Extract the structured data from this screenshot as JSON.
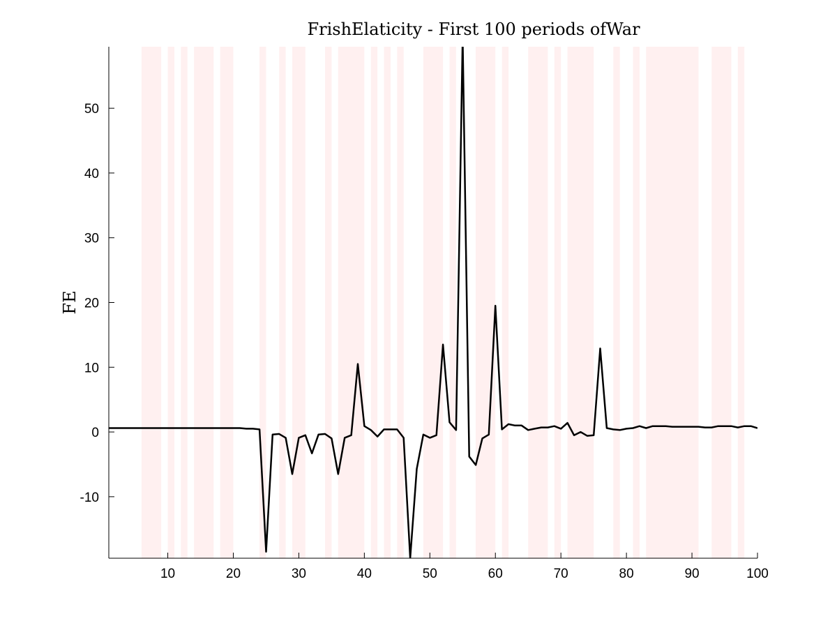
{
  "chart_data": {
    "type": "line",
    "title": "FrishElaticity - First 100 periods ofWar",
    "xlabel": "",
    "ylabel": "FE",
    "xlim": [
      1,
      100
    ],
    "ylim": [
      -19.5,
      59.5
    ],
    "xticks": [
      10,
      20,
      30,
      40,
      50,
      60,
      70,
      80,
      90,
      100
    ],
    "yticks": [
      -10,
      0,
      10,
      20,
      30,
      40,
      50
    ],
    "grid": false,
    "line_color": "#000000",
    "shade_color": "#fff0f0",
    "war_periods": [
      [
        6,
        9
      ],
      [
        10,
        11
      ],
      [
        12,
        13
      ],
      [
        14,
        17
      ],
      [
        18,
        20
      ],
      [
        24,
        25
      ],
      [
        27,
        28
      ],
      [
        29,
        31
      ],
      [
        34,
        35
      ],
      [
        36,
        40
      ],
      [
        41,
        42
      ],
      [
        43,
        44
      ],
      [
        45,
        46
      ],
      [
        49,
        52
      ],
      [
        53,
        54
      ],
      [
        57,
        60
      ],
      [
        61,
        62
      ],
      [
        65,
        68
      ],
      [
        69,
        70
      ],
      [
        71,
        75
      ],
      [
        78,
        79
      ],
      [
        81,
        82
      ],
      [
        83,
        91
      ],
      [
        93,
        96
      ],
      [
        97,
        98
      ]
    ],
    "series": [
      {
        "x": [
          1,
          2,
          3,
          4,
          5,
          6,
          7,
          8,
          9,
          10,
          11,
          12,
          13,
          14,
          15,
          16,
          17,
          18,
          19,
          20,
          21,
          22,
          23,
          24,
          25,
          26,
          27,
          28,
          29,
          30,
          31,
          32,
          33,
          34,
          35,
          36,
          37,
          38,
          39,
          40,
          41,
          42,
          43,
          44,
          45,
          46,
          47,
          48,
          49,
          50,
          51,
          52,
          53,
          54,
          55,
          56,
          57,
          58,
          59,
          60,
          61,
          62,
          63,
          64,
          65,
          66,
          67,
          68,
          69,
          70,
          71,
          72,
          73,
          74,
          75,
          76,
          77,
          78,
          79,
          80,
          81,
          82,
          83,
          84,
          85,
          86,
          87,
          88,
          89,
          90,
          91,
          92,
          93,
          94,
          95,
          96,
          97,
          98,
          99,
          100
        ],
        "values": [
          0.6,
          0.6,
          0.6,
          0.6,
          0.6,
          0.6,
          0.6,
          0.6,
          0.6,
          0.6,
          0.6,
          0.6,
          0.6,
          0.6,
          0.6,
          0.6,
          0.6,
          0.6,
          0.6,
          0.6,
          0.6,
          0.5,
          0.5,
          0.4,
          -18.5,
          -0.4,
          -0.3,
          -0.9,
          -6.5,
          -0.9,
          -0.5,
          -3.3,
          -0.4,
          -0.3,
          -1.0,
          -6.5,
          -0.9,
          -0.5,
          10.5,
          0.9,
          0.3,
          -0.7,
          0.4,
          0.4,
          0.4,
          -0.9,
          -19.5,
          -5.7,
          -0.4,
          -0.9,
          -0.5,
          13.5,
          1.5,
          0.3,
          61.0,
          -3.8,
          -5.1,
          -1.0,
          -0.4,
          19.5,
          0.4,
          1.2,
          1.0,
          1.0,
          0.3,
          0.5,
          0.7,
          0.7,
          0.9,
          0.5,
          1.4,
          -0.5,
          0.0,
          -0.6,
          -0.5,
          12.9,
          0.6,
          0.4,
          0.3,
          0.5,
          0.6,
          0.9,
          0.6,
          0.9,
          0.9,
          0.9,
          0.8,
          0.8,
          0.8,
          0.8,
          0.8,
          0.7,
          0.7,
          0.9,
          0.9,
          0.9,
          0.7,
          0.9,
          0.9,
          0.6
        ]
      }
    ]
  }
}
